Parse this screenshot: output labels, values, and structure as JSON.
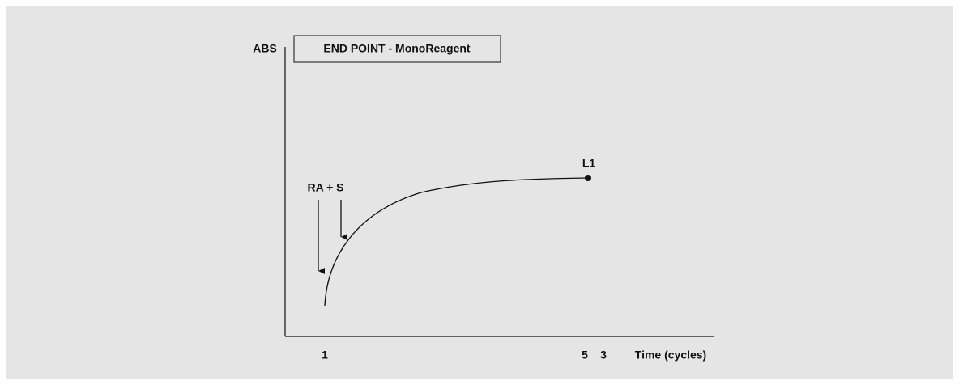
{
  "title": "END POINT - MonoReagent",
  "axes": {
    "y_label": "ABS",
    "x_label": "Time (cycles)",
    "x_labels": [
      "1",
      "5",
      "3"
    ]
  },
  "annotations": {
    "addition": "RA + S",
    "end_point": "L1"
  }
}
